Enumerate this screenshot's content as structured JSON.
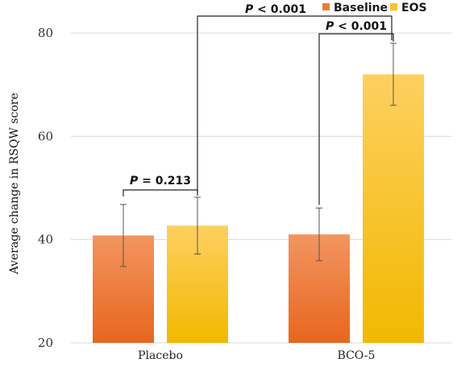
{
  "chart_data": {
    "type": "bar",
    "categories": [
      "Placebo",
      "BCO-5"
    ],
    "series": [
      {
        "name": "Baseline",
        "values": [
          40.8,
          41.0
        ],
        "error": [
          6.0,
          5.1
        ],
        "color": "#ee7b3a"
      },
      {
        "name": "EOS",
        "values": [
          42.7,
          72.0
        ],
        "error": [
          5.5,
          6.0
        ],
        "color": "#fbc02d"
      }
    ],
    "ylabel": "Average change in  RSQW score",
    "xlabel": "",
    "ylim": [
      20,
      80
    ],
    "yticks": [
      20,
      40,
      60,
      80
    ],
    "grid": "horizontal",
    "legend": "top-right",
    "annotations": [
      {
        "text": "P = 0.213",
        "p": "P",
        "rest": " = 0.213"
      },
      {
        "text": "P < 0.001",
        "p": "P",
        "rest": " < 0.001"
      },
      {
        "text": "P < 0.001",
        "p": "P",
        "rest": " < 0.001"
      }
    ]
  }
}
